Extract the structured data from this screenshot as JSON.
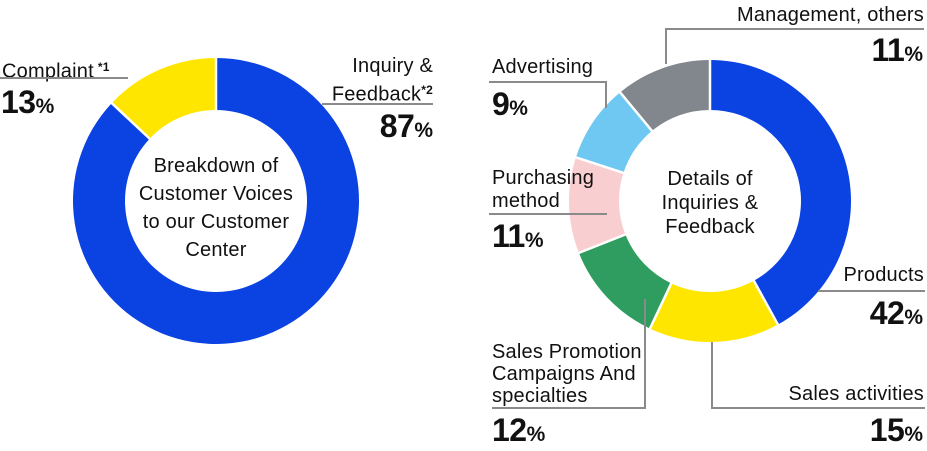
{
  "percent_sign": "%",
  "colors": {
    "blue": "#0B42E2",
    "yellow": "#FFE600",
    "green": "#2F9C60",
    "pink": "#F9CED1",
    "sky": "#6EC8F2",
    "gray": "#82878E",
    "leader_line": "#8a8a8a",
    "text": "#111111"
  },
  "chart_data": [
    {
      "type": "pie",
      "subtype": "donut",
      "title": "Breakdown of Customer Voices to our Customer Center",
      "categories": [
        "Inquiry & Feedback",
        "Complaint"
      ],
      "values": [
        87,
        13
      ],
      "colors": [
        "#0B42E2",
        "#FFE600"
      ],
      "start_angle_deg": 0,
      "direction": "clockwise",
      "legend_position": "callout-labels"
    },
    {
      "type": "pie",
      "subtype": "donut",
      "title": "Details of Inquiries & Feedback",
      "categories": [
        "Products",
        "Sales activities",
        "Sales Promotion Campaigns And specialties",
        "Purchasing method",
        "Advertising",
        "Management, others"
      ],
      "values": [
        42,
        15,
        12,
        11,
        9,
        11
      ],
      "colors": [
        "#0B42E2",
        "#FFE600",
        "#2F9C60",
        "#F9CED1",
        "#6EC8F2",
        "#82878E"
      ],
      "start_angle_deg": 0,
      "direction": "clockwise",
      "legend_position": "callout-labels"
    }
  ],
  "center_titles": {
    "left": {
      "line1": "Breakdown of",
      "line2": "Customer Voices",
      "line3": "to our Customer",
      "line4": "Center"
    },
    "right": {
      "line1": "Details of",
      "line2": "Inquiries &",
      "line3": "Feedback"
    }
  },
  "labels": {
    "complaint": {
      "text": "Complaint",
      "sup": "*1",
      "value": "13"
    },
    "inquiry": {
      "line1": "Inquiry &",
      "line2": "Feedback",
      "sup": "*2",
      "value": "87"
    },
    "management": {
      "text": "Management, others",
      "value": "11"
    },
    "advertising": {
      "text": "Advertising",
      "value": "9"
    },
    "purchasing": {
      "line1": "Purchasing",
      "line2": "method",
      "value": "11"
    },
    "sales_promotion": {
      "line1": "Sales Promotion",
      "line2": "Campaigns And",
      "line3": "specialties",
      "value": "12"
    },
    "sales_activities": {
      "text": "Sales activities",
      "value": "15"
    },
    "products": {
      "text": "Products",
      "value": "42"
    }
  }
}
